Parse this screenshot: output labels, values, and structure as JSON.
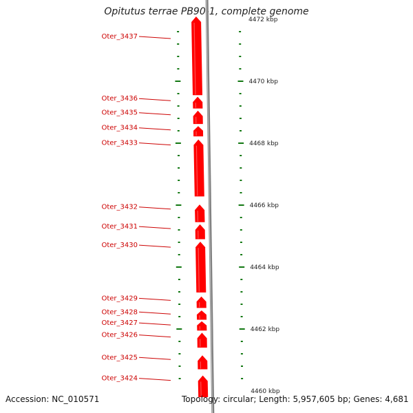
{
  "title": "Opitutus terrae PB90-1, complete genome",
  "accession": "Accession: NC_010571",
  "summary": "Topology: circular; Length: 5,957,605 bp; Genes: 4,681",
  "colors": {
    "gene": "#ff0000",
    "gene_highlight": "#ff7777",
    "backbone": "#808080",
    "tick": "#117711",
    "label": "#cc0000"
  },
  "scale": {
    "top_kbp": 4472,
    "kbp_labels": [
      {
        "kbp": 4472,
        "text": "4472 kbp"
      },
      {
        "kbp": 4470,
        "text": "4470 kbp"
      },
      {
        "kbp": 4468,
        "text": "4468 kbp"
      },
      {
        "kbp": 4466,
        "text": "4466 kbp"
      },
      {
        "kbp": 4464,
        "text": "4464 kbp"
      },
      {
        "kbp": 4462,
        "text": "4462 kbp"
      },
      {
        "kbp": 4460,
        "text": "4460 kbp"
      }
    ]
  },
  "genes": [
    {
      "id": "Oter_3437",
      "start_kbp": 4472.1,
      "end_kbp": 4469.55
    },
    {
      "id": "Oter_3436",
      "start_kbp": 4469.5,
      "end_kbp": 4469.12
    },
    {
      "id": "Oter_3435",
      "start_kbp": 4469.05,
      "end_kbp": 4468.62
    },
    {
      "id": "Oter_3434",
      "start_kbp": 4468.55,
      "end_kbp": 4468.22
    },
    {
      "id": "Oter_3433",
      "start_kbp": 4468.12,
      "end_kbp": 4466.28
    },
    {
      "id": "Oter_3432",
      "start_kbp": 4466.02,
      "end_kbp": 4465.45
    },
    {
      "id": "Oter_3431",
      "start_kbp": 4465.38,
      "end_kbp": 4464.9
    },
    {
      "id": "Oter_3430",
      "start_kbp": 4464.82,
      "end_kbp": 4463.18
    },
    {
      "id": "Oter_3429",
      "start_kbp": 4463.05,
      "end_kbp": 4462.68
    },
    {
      "id": "Oter_3428",
      "start_kbp": 4462.6,
      "end_kbp": 4462.3
    },
    {
      "id": "Oter_3427",
      "start_kbp": 4462.25,
      "end_kbp": 4461.95
    },
    {
      "id": "Oter_3426",
      "start_kbp": 4461.88,
      "end_kbp": 4461.4
    },
    {
      "id": "Oter_3425",
      "start_kbp": 4461.15,
      "end_kbp": 4460.7
    },
    {
      "id": "Oter_3424",
      "start_kbp": 4460.5,
      "end_kbp": 4459.8
    }
  ]
}
